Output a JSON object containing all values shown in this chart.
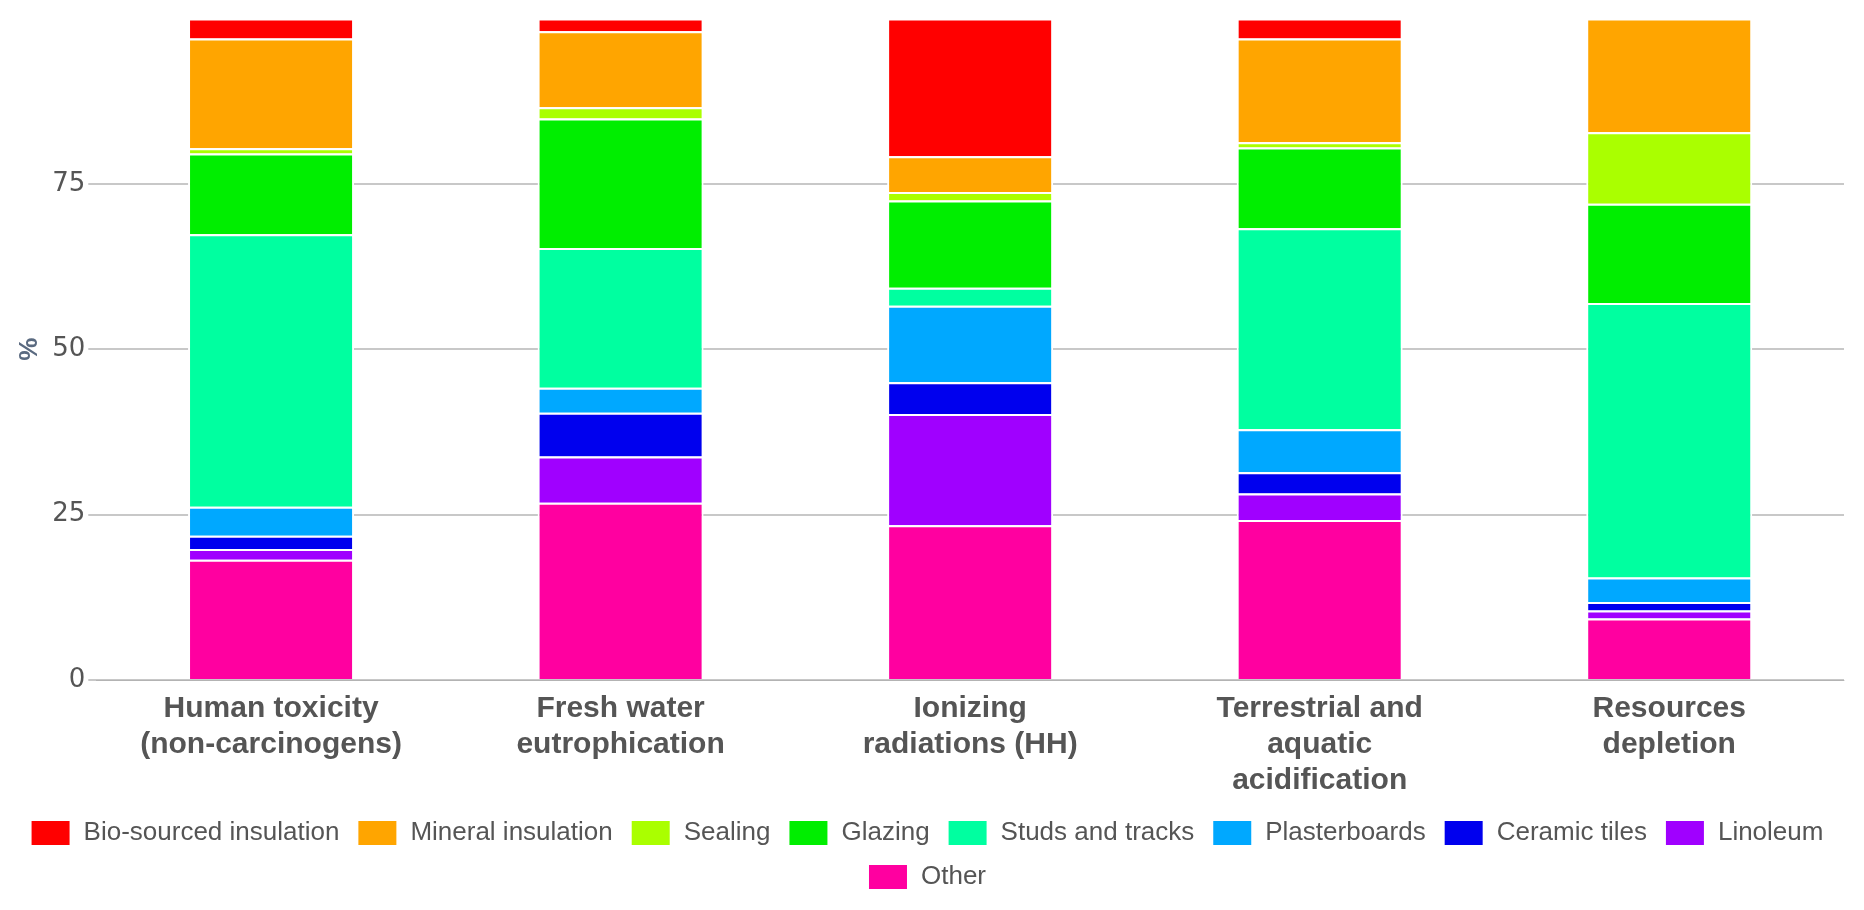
{
  "chart_data": {
    "type": "bar",
    "stacked": true,
    "ylabel": "%",
    "categories": [
      "Human toxicity (non-carcinogens)",
      "Fresh water eutrophication",
      "Ionizing radiations (HH)",
      "Terrestrial and aquatic acidification",
      "Resources depletion"
    ],
    "series": [
      {
        "name": "Other",
        "color": "#ff00a0",
        "values": [
          18.2,
          26.8,
          23.4,
          24.2,
          9.3
        ]
      },
      {
        "name": "Linoleum",
        "color": "#a000ff",
        "values": [
          1.6,
          7.0,
          16.8,
          4.0,
          1.2
        ]
      },
      {
        "name": "Ceramic tiles",
        "color": "#0000ee",
        "values": [
          2.0,
          6.6,
          4.8,
          3.2,
          1.3
        ]
      },
      {
        "name": "Plasterboards",
        "color": "#00a8ff",
        "values": [
          4.4,
          3.8,
          11.6,
          6.5,
          3.7
        ]
      },
      {
        "name": "Studs and tracks",
        "color": "#00ffa0",
        "values": [
          41.2,
          21.1,
          2.7,
          30.4,
          41.5
        ]
      },
      {
        "name": "Glazing",
        "color": "#00ee00",
        "values": [
          12.2,
          19.6,
          13.2,
          12.2,
          15.0
        ]
      },
      {
        "name": "Sealing",
        "color": "#aaff00",
        "values": [
          0.8,
          1.7,
          1.3,
          0.8,
          10.8
        ]
      },
      {
        "name": "Mineral insulation",
        "color": "#ffa500",
        "values": [
          16.6,
          11.5,
          5.4,
          15.7,
          17.2
        ]
      },
      {
        "name": "Bio-sourced insulation",
        "color": "#ff0000",
        "values": [
          3.0,
          1.9,
          20.8,
          3.0,
          0
        ]
      }
    ],
    "ylim": [
      0,
      100
    ],
    "yticks": [
      0,
      25,
      50,
      75
    ],
    "grid": "y",
    "legend": "bottom"
  }
}
